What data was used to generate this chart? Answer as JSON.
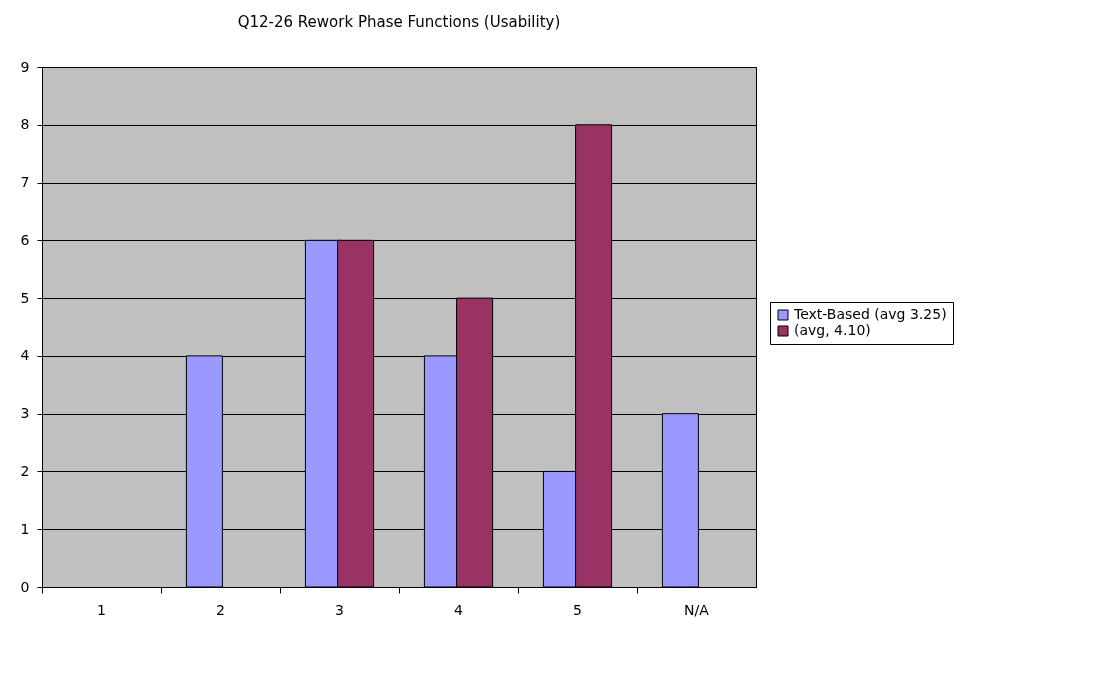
{
  "chart_data": {
    "type": "bar",
    "title": "Q12-26 Rework Phase Functions (Usability)",
    "categories": [
      "1",
      "2",
      "3",
      "4",
      "5",
      "N/A"
    ],
    "series": [
      {
        "name": "Text-Based (avg 3.25)",
        "color": "#9999ff",
        "values": [
          0,
          4,
          6,
          4,
          2,
          3
        ]
      },
      {
        "name": "(avg, 4.10)",
        "color": "#993366",
        "values": [
          0,
          0,
          6,
          5,
          8,
          0
        ]
      }
    ],
    "ylim": [
      0,
      9
    ],
    "yticks": [
      0,
      1,
      2,
      3,
      4,
      5,
      6,
      7,
      8,
      9
    ],
    "grid": "y",
    "legend": "right"
  }
}
